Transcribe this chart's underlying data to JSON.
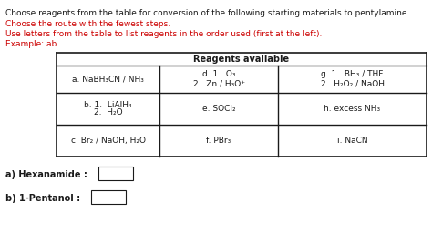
{
  "title_line1": "Choose reagents from the table for conversion of the following starting materials to pentylamine.",
  "title_line2": "Choose the route with the fewest steps.",
  "title_line3": "Use letters from the table to list reagents in the order used (first at the left).",
  "title_line4": "Example: ab",
  "table_header": "Reagents available",
  "cell_a": "a. NaBH₃CN / NH₃",
  "cell_d_line1": "d. 1.  O₃",
  "cell_d_line2": "2.  Zn / H₃O⁺",
  "cell_g_line1": "g. 1.  BH₃ / THF",
  "cell_g_line2": "2.  H₂O₂ / NaOH",
  "cell_b_line1": "b. 1.  LiAlH₄",
  "cell_b_line2": "2.  H₂O",
  "cell_e": "e. SOCl₂",
  "cell_h": "h. excess NH₃",
  "cell_c": "c. Br₂ / NaOH, H₂O",
  "cell_f": "f. PBr₃",
  "cell_i": "i. NaCN",
  "label_a": "a) Hexanamide :",
  "label_b": "b) 1-Pentanol :",
  "bg_color": "#ffffff",
  "red_color": "#cc0000",
  "black_color": "#1a1a1a",
  "table_border_color": "#1a1a1a",
  "header_font_size": 7.0,
  "body_font_size": 6.5,
  "instructions_font_size": 6.5,
  "label_font_size": 7.0
}
